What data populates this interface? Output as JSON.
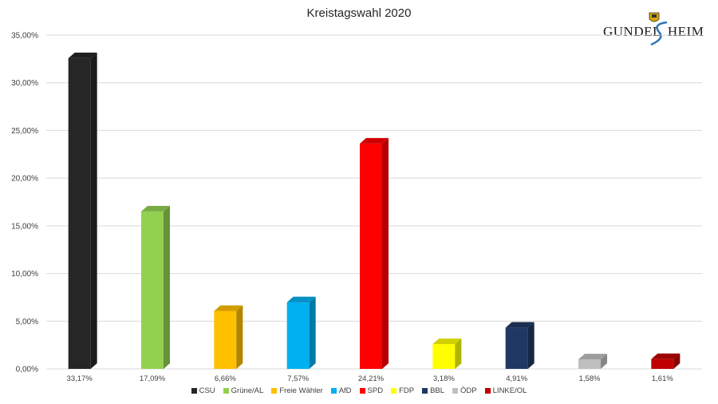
{
  "title": "Kreistagswahl 2020",
  "logo": {
    "text_left": "GUNDEL",
    "text_right": "HEIM"
  },
  "chart_data": {
    "type": "bar",
    "title": "Kreistagswahl 2020",
    "xlabel": "",
    "ylabel": "",
    "ylim": [
      0,
      35
    ],
    "yticks": [
      "0,00%",
      "5,00%",
      "10,00%",
      "15,00%",
      "20,00%",
      "25,00%",
      "30,00%",
      "35,00%"
    ],
    "grid": true,
    "legend_position": "bottom",
    "categories": [
      "CSU",
      "Grüne/AL",
      "Freie Wähler",
      "AfD",
      "SPD",
      "FDP",
      "BBL",
      "ÖDP",
      "LINKE/OL"
    ],
    "values": [
      33.17,
      17.09,
      6.66,
      7.57,
      24.21,
      3.18,
      4.91,
      1.58,
      1.61
    ],
    "data_labels": [
      "33,17%",
      "17,09%",
      "6,66%",
      "7,57%",
      "24,21%",
      "3,18%",
      "4,91%",
      "1,58%",
      "1,61%"
    ],
    "colors": [
      "#262626",
      "#92d050",
      "#ffc000",
      "#00b0f0",
      "#ff0000",
      "#ffff00",
      "#203864",
      "#bfbfbf",
      "#c00000"
    ]
  }
}
